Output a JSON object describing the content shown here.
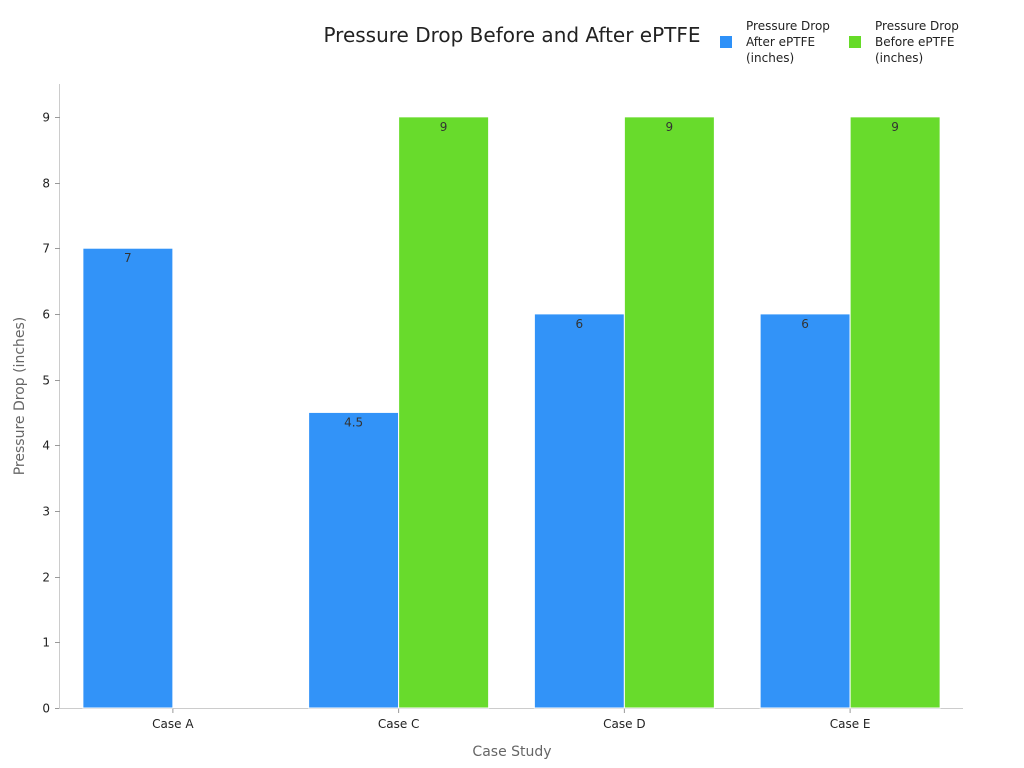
{
  "chart_data": {
    "type": "bar",
    "title": "Pressure Drop Before and After ePTFE",
    "xlabel": "Case Study",
    "ylabel": "Pressure Drop (inches)",
    "categories": [
      "Case A",
      "Case C",
      "Case D",
      "Case E"
    ],
    "ylim": [
      0,
      9.5
    ],
    "yticks": [
      0,
      1,
      2,
      3,
      4,
      5,
      6,
      7,
      8,
      9
    ],
    "grid": false,
    "legend_position": "top-right",
    "series": [
      {
        "name": "Pressure Drop After ePTFE (inches)",
        "legend_lines": [
          "Pressure Drop",
          "After ePTFE",
          "(inches)"
        ],
        "color": "#2E91F8",
        "values": [
          7,
          4.5,
          6,
          6
        ]
      },
      {
        "name": "Pressure Drop Before ePTFE (inches)",
        "legend_lines": [
          "Pressure Drop",
          "Before ePTFE",
          "(inches)"
        ],
        "color": "#66DB28",
        "values": [
          null,
          9,
          9,
          9
        ]
      }
    ]
  }
}
